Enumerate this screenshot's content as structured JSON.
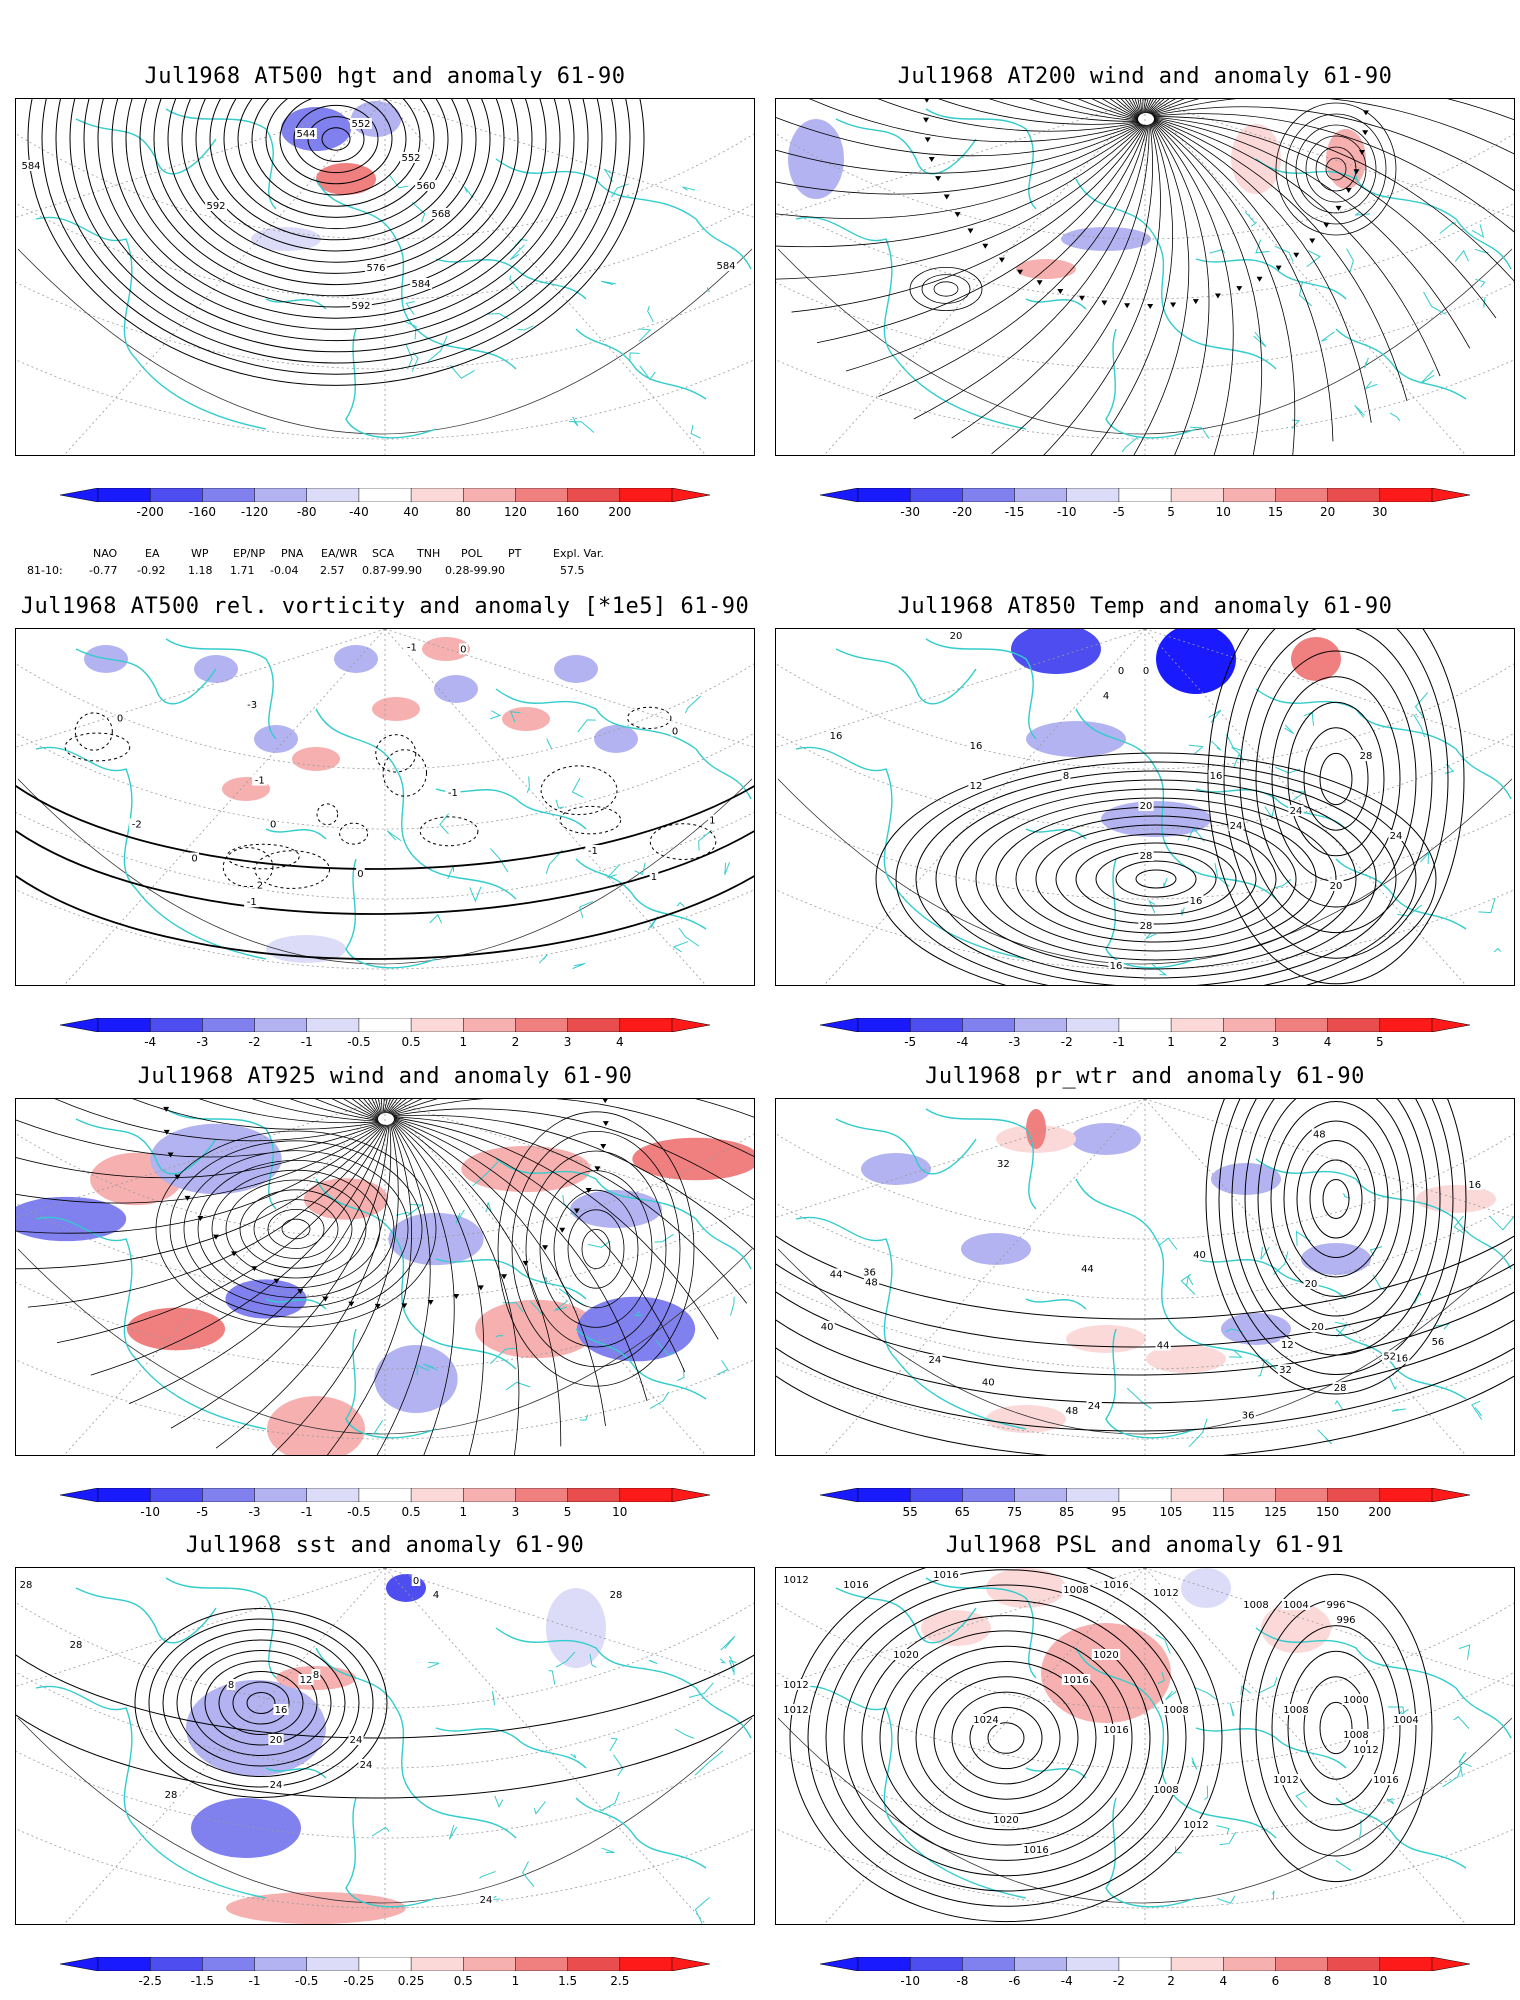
{
  "colors": {
    "coast": "#33cccc",
    "contour": "#000000",
    "grid": "#9a9a9a",
    "ramp_neg": [
      "#1a1aff",
      "#4d4df0",
      "#8080ee",
      "#b3b3f2",
      "#dcdcf8"
    ],
    "ramp_pos": [
      "#fbd9d9",
      "#f6b0b0",
      "#f08080",
      "#ea4d4d",
      "#ff1a1a"
    ]
  },
  "panels": [
    {
      "id": "p1",
      "title": "Jul1968 AT500 hgt and anomaly 61-90",
      "colorbar_ticks": [
        "-200",
        "-160",
        "-120",
        "-80",
        "-40",
        "40",
        "80",
        "120",
        "160",
        "200"
      ],
      "contour_labels": [
        "552",
        "552",
        "544",
        "560",
        "568",
        "576",
        "584",
        "592",
        "592",
        "584",
        "584"
      ]
    },
    {
      "id": "p2",
      "title": "Jul1968 AT200 wind and anomaly 61-90",
      "colorbar_ticks": [
        "-30",
        "-20",
        "-15",
        "-10",
        "-5",
        "5",
        "10",
        "15",
        "20",
        "30"
      ],
      "contour_labels": []
    },
    {
      "id": "p3",
      "title": "Jul1968 AT500 rel. vorticity and anomaly [*1e5] 61-90",
      "colorbar_ticks": [
        "-4",
        "-3",
        "-2",
        "-1",
        "-0.5",
        "0.5",
        "1",
        "2",
        "3",
        "4"
      ],
      "contour_labels": [
        "0",
        "0",
        "0",
        "0",
        "0",
        "0",
        "1",
        "-1",
        "1",
        "-1",
        "-1",
        "-1",
        "-3",
        "2",
        "-2",
        "-1"
      ]
    },
    {
      "id": "p4",
      "title": "Jul1968 AT850 Temp and anomaly 61-90",
      "colorbar_ticks": [
        "-5",
        "-4",
        "-3",
        "-2",
        "-1",
        "1",
        "2",
        "3",
        "4",
        "5"
      ],
      "contour_labels": [
        "20",
        "16",
        "16",
        "12",
        "8",
        "4",
        "0",
        "0",
        "16",
        "20",
        "24",
        "28",
        "28",
        "24",
        "20",
        "16",
        "16",
        "24",
        "28"
      ]
    },
    {
      "id": "p5",
      "title": "Jul1968 AT925 wind and anomaly 61-90",
      "colorbar_ticks": [
        "-10",
        "-5",
        "-3",
        "-1",
        "-0.5",
        "0.5",
        "1",
        "3",
        "5",
        "10"
      ],
      "contour_labels": []
    },
    {
      "id": "p6",
      "title": "Jul1968 pr_wtr and anomaly 61-90",
      "colorbar_ticks": [
        "55",
        "65",
        "75",
        "85",
        "95",
        "105",
        "115",
        "125",
        "150",
        "200"
      ],
      "contour_labels": [
        "48",
        "44",
        "40",
        "36",
        "32",
        "28",
        "24",
        "20",
        "16",
        "12",
        "48",
        "44",
        "40",
        "36",
        "32",
        "24",
        "20",
        "16",
        "40",
        "44",
        "48",
        "52",
        "56"
      ]
    },
    {
      "id": "p7",
      "title": "Jul1968 sst and anomaly 61-90",
      "colorbar_ticks": [
        "-2.5",
        "-1.5",
        "-1",
        "-0.5",
        "-0.25",
        "0.25",
        "0.5",
        "1",
        "1.5",
        "2.5"
      ],
      "contour_labels": [
        "28",
        "28",
        "28",
        "8",
        "12",
        "16",
        "20",
        "24",
        "24",
        "24",
        "28",
        "24",
        "0",
        "4",
        "8"
      ]
    },
    {
      "id": "p8",
      "title": "Jul1968 PSL and anomaly 61-91",
      "colorbar_ticks": [
        "-10",
        "-8",
        "-6",
        "-4",
        "-2",
        "2",
        "4",
        "6",
        "8",
        "10"
      ],
      "contour_labels": [
        "1012",
        "1016",
        "1016",
        "1008",
        "1016",
        "1012",
        "1020",
        "1012",
        "1012",
        "1020",
        "1016",
        "1024",
        "1020",
        "1016",
        "1016",
        "1008",
        "1008",
        "1000",
        "1004",
        "1008",
        "1012",
        "1016",
        "1012",
        "1008",
        "1012",
        "1008",
        "1004",
        "996",
        "996"
      ]
    }
  ],
  "indices": {
    "names": [
      "NAO",
      "EA",
      "WP",
      "EP/NP",
      "PNA",
      "EA/WR",
      "SCA",
      "TNH",
      "POL",
      "PT",
      "Expl. Var."
    ],
    "period": "81-10:",
    "values": [
      "-0.77",
      "-0.92",
      "1.18",
      "1.71",
      "-0.04",
      "2.57",
      "0.87-99.90",
      "0.28-99.90",
      "57.5"
    ]
  }
}
